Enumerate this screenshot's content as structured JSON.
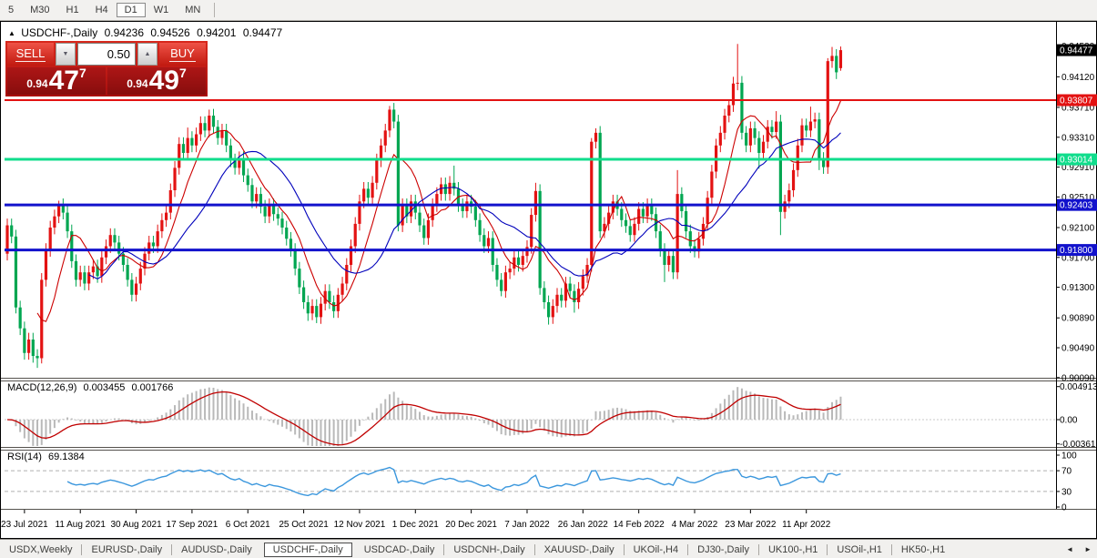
{
  "toolbar": {
    "timeframes": [
      {
        "label": "5",
        "active": false
      },
      {
        "label": "M30",
        "active": false
      },
      {
        "label": "H1",
        "active": false
      },
      {
        "label": "H4",
        "active": false
      },
      {
        "label": "D1",
        "active": true
      },
      {
        "label": "W1",
        "active": false
      },
      {
        "label": "MN",
        "active": false
      }
    ]
  },
  "chart": {
    "collapse_icon": "▲",
    "title": "USDCHF-,Daily",
    "open": "0.94236",
    "high": "0.94526",
    "low": "0.94201",
    "close": "0.94477",
    "current_price_label": "0.94477",
    "current_price_value": 0.94477,
    "y_ticks": [
      "0.94530",
      "0.94120",
      "0.93710",
      "0.93310",
      "0.92910",
      "0.92510",
      "0.92100",
      "0.91700",
      "0.91300",
      "0.90890",
      "0.90490",
      "0.90090"
    ],
    "x_labels": [
      "23 Jul 2021",
      "11 Aug 2021",
      "30 Aug 2021",
      "17 Sep 2021",
      "6 Oct 2021",
      "25 Oct 2021",
      "12 Nov 2021",
      "1 Dec 2021",
      "20 Dec 2021",
      "7 Jan 2022",
      "26 Jan 2022",
      "14 Feb 2022",
      "4 Mar 2022",
      "23 Mar 2022",
      "11 Apr 2022"
    ],
    "levels": [
      {
        "label": "0.93807",
        "value": 0.93807,
        "color": "#e31212",
        "width": 2
      },
      {
        "label": "0.93014",
        "value": 0.93014,
        "color": "#10dd8c",
        "width": 3
      },
      {
        "label": "0.92403",
        "value": 0.92403,
        "color": "#1212cc",
        "width": 3
      },
      {
        "label": "0.91800",
        "value": 0.918,
        "color": "#1212cc",
        "width": 3
      }
    ]
  },
  "trade_panel": {
    "sell_label": "SELL",
    "buy_label": "BUY",
    "volume": "0.50",
    "spin_down_icon": "▼",
    "spin_up_icon": "▲",
    "sell_price_prefix": "0.94",
    "sell_price_big": "47",
    "sell_price_sup": "7",
    "buy_price_prefix": "0.94",
    "buy_price_big": "49",
    "buy_price_sup": "7"
  },
  "macd": {
    "name": "MACD(12,26,9)",
    "main_value": "0.003455",
    "signal_value": "0.001766",
    "ticks": [
      "0.004913",
      "0.00",
      "-0.00361"
    ]
  },
  "rsi": {
    "name": "RSI(14)",
    "value": "69.1384",
    "ticks": [
      "100",
      "70",
      "30",
      "0"
    ],
    "levels": [
      70,
      30
    ]
  },
  "bottom_tabs": {
    "scroll_left": "◄",
    "scroll_right": "►",
    "tabs": [
      {
        "label": "USDX,Weekly",
        "active": false
      },
      {
        "label": "EURUSD-,Daily",
        "active": false
      },
      {
        "label": "AUDUSD-,Daily",
        "active": false
      },
      {
        "label": "USDCHF-,Daily",
        "active": true
      },
      {
        "label": "USDCAD-,Daily",
        "active": false
      },
      {
        "label": "USDCNH-,Daily",
        "active": false
      },
      {
        "label": "XAUUSD-,Daily",
        "active": false
      },
      {
        "label": "UKOil-,H4",
        "active": false
      },
      {
        "label": "DJ30-,Daily",
        "active": false
      },
      {
        "label": "UK100-,H1",
        "active": false
      },
      {
        "label": "USOil-,H1",
        "active": false
      },
      {
        "label": "HK50-,H1",
        "active": false
      }
    ]
  },
  "chart_data": {
    "type": "candlestick",
    "symbol": "USDCHF-",
    "timeframe": "Daily",
    "title": "USDCHF-,Daily",
    "up_color": "#e31212",
    "down_color": "#00a651",
    "ma_fast": {
      "period": 8,
      "color": "#cc0000"
    },
    "ma_slow": {
      "period": 20,
      "color": "#0000bb"
    },
    "macd_params": [
      12,
      26,
      9
    ],
    "rsi_period": 14,
    "first_label_bar": 4,
    "x_label_every": 13,
    "closes": [
      0.9213,
      0.9198,
      0.9103,
      0.9075,
      0.9042,
      0.906,
      0.9038,
      0.9035,
      0.914,
      0.918,
      0.921,
      0.9225,
      0.924,
      0.923,
      0.9205,
      0.9165,
      0.914,
      0.915,
      0.9135,
      0.915,
      0.9158,
      0.9145,
      0.917,
      0.9185,
      0.92,
      0.919,
      0.9175,
      0.916,
      0.914,
      0.912,
      0.9135,
      0.9155,
      0.9175,
      0.919,
      0.9185,
      0.9205,
      0.922,
      0.923,
      0.926,
      0.929,
      0.9322,
      0.931,
      0.933,
      0.932,
      0.9335,
      0.935,
      0.934,
      0.936,
      0.9345,
      0.933,
      0.934,
      0.932,
      0.93,
      0.929,
      0.9303,
      0.928,
      0.9267,
      0.9245,
      0.9255,
      0.9238,
      0.9225,
      0.924,
      0.9228,
      0.9222,
      0.921,
      0.9195,
      0.918,
      0.9155,
      0.913,
      0.911,
      0.9095,
      0.9105,
      0.909,
      0.9108,
      0.9125,
      0.911,
      0.9098,
      0.912,
      0.9135,
      0.916,
      0.9185,
      0.9215,
      0.9245,
      0.9262,
      0.925,
      0.927,
      0.93,
      0.932,
      0.934,
      0.9368,
      0.9352,
      0.9213,
      0.924,
      0.9225,
      0.9245,
      0.923,
      0.9213,
      0.9196,
      0.922,
      0.924,
      0.9255,
      0.9268,
      0.9255,
      0.927,
      0.9262,
      0.924,
      0.9232,
      0.9245,
      0.9238,
      0.922,
      0.92,
      0.9185,
      0.9196,
      0.916,
      0.914,
      0.9125,
      0.915,
      0.9155,
      0.917,
      0.916,
      0.9172,
      0.9184,
      0.9227,
      0.9259,
      0.9129,
      0.911,
      0.909,
      0.9105,
      0.912,
      0.9112,
      0.9135,
      0.9125,
      0.911,
      0.9128,
      0.9145,
      0.916,
      0.9325,
      0.9337,
      0.9205,
      0.9215,
      0.923,
      0.9245,
      0.9235,
      0.922,
      0.9212,
      0.92,
      0.9215,
      0.9235,
      0.9225,
      0.924,
      0.9228,
      0.9205,
      0.918,
      0.916,
      0.9172,
      0.915,
      0.9255,
      0.9232,
      0.9205,
      0.9185,
      0.9178,
      0.9195,
      0.9215,
      0.925,
      0.9285,
      0.932,
      0.9337,
      0.936,
      0.9374,
      0.9403,
      0.9404,
      0.9337,
      0.932,
      0.9343,
      0.933,
      0.931,
      0.9325,
      0.9345,
      0.9338,
      0.9352,
      0.9231,
      0.9245,
      0.926,
      0.9287,
      0.932,
      0.9347,
      0.934,
      0.9352,
      0.9355,
      0.9302,
      0.9291,
      0.9433,
      0.944,
      0.9418,
      0.94477
    ],
    "opens_override": {
      "0": 0.9175,
      "194": 0.94236
    },
    "highs_override": {
      "12": 0.9246,
      "42": 0.9344,
      "47": 0.9368,
      "89": 0.9373,
      "104": 0.9293,
      "123": 0.927,
      "136": 0.933,
      "137": 0.9343,
      "156": 0.9287,
      "168": 0.9381,
      "170": 0.9456,
      "179": 0.9366,
      "187": 0.9372,
      "191": 0.9437,
      "192": 0.9452,
      "194": 0.94526
    },
    "lows_override": {
      "2": 0.9095,
      "7": 0.9022,
      "8": 0.9028,
      "70": 0.9085,
      "72": 0.9082,
      "91": 0.9205,
      "115": 0.9118,
      "126": 0.908,
      "132": 0.9096,
      "138": 0.9196,
      "153": 0.9137,
      "159": 0.9176,
      "160": 0.917,
      "175": 0.9289,
      "180": 0.92,
      "189": 0.9287,
      "194": 0.94201
    }
  }
}
